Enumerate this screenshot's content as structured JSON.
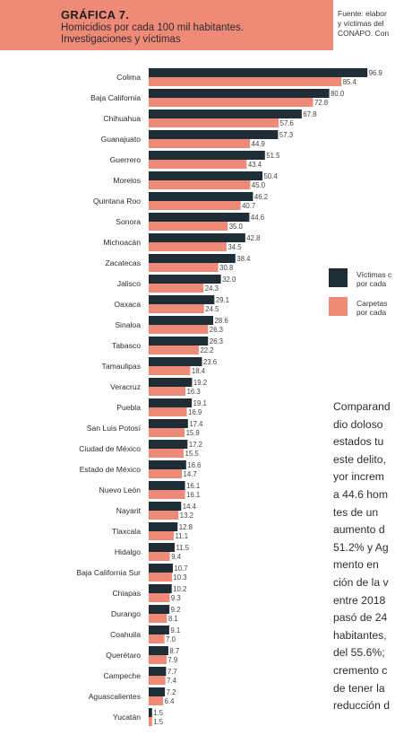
{
  "header": {
    "title": "GRÁFICA 7.",
    "subtitle_line1": "Homicidios por cada 100 mil habitantes.",
    "subtitle_line2": "Investigaciones y víctimas",
    "source_line1": "Fuente: elabor",
    "source_line2": "y víctimas del",
    "source_line3": "CONAPO. Con"
  },
  "legend": [
    {
      "line1": "Víctimas c",
      "line2": "por cada",
      "color": "#1f2d36"
    },
    {
      "line1": "Carpetas",
      "line2": "por cada",
      "color": "#f08a78"
    }
  ],
  "body_text": [
    "Comparand",
    "dio doloso",
    "estados tu",
    "este delito,",
    "yor increm",
    "a 44.6 hom",
    "tes de un",
    "aumento d",
    "51.2% y Ag",
    "mento en",
    "ción de la v",
    "entre 2018",
    "pasó de 24",
    "habitantes,",
    "del 55.6%;",
    "cremento c",
    "de tener la",
    "reducción d"
  ],
  "chart_data": {
    "type": "bar",
    "orientation": "horizontal",
    "categories": [
      "Colima",
      "Baja California",
      "Chihuahua",
      "Guanajuato",
      "Guerrero",
      "Morelos",
      "Quintana Roo",
      "Sonora",
      "Michoacán",
      "Zacatecas",
      "Jalisco",
      "Oaxaca",
      "Sinaloa",
      "Tabasco",
      "Tamaulipas",
      "Veracruz",
      "Puebla",
      "San Luis Potosí",
      "Ciudad de México",
      "Estado de México",
      "Nuevo León",
      "Nayarit",
      "Tlaxcala",
      "Hidalgo",
      "Baja California Sur",
      "Chiapas",
      "Durango",
      "Coahuila",
      "Querétaro",
      "Campeche",
      "Aguascalientes",
      "Yucatán"
    ],
    "series": [
      {
        "name": "Víctimas c por cada",
        "color": "#1f2d36",
        "values": [
          96.9,
          80.0,
          67.8,
          57.3,
          51.5,
          50.4,
          46.2,
          44.6,
          42.8,
          38.4,
          32.0,
          29.1,
          28.6,
          26.3,
          23.6,
          19.2,
          19.1,
          17.4,
          17.2,
          16.6,
          16.1,
          14.4,
          12.8,
          11.5,
          10.7,
          10.2,
          9.2,
          9.1,
          8.7,
          7.7,
          7.2,
          1.5
        ],
        "labels": [
          "96.9",
          "80.0",
          "67.8",
          "57.3",
          "51.5",
          "50.4",
          "46.2",
          "44.6",
          "42.8",
          "38.4",
          "32.0",
          "29.1",
          "28.6",
          "26.3",
          "23.6",
          "19.2",
          "19.1",
          "17.4",
          "17.2",
          "16.6",
          "16.1",
          "14.4",
          "12.8",
          "11.5",
          "10.7",
          "10.2",
          "9.2",
          "9.1",
          "8.7",
          "7.7",
          "7.2",
          "1.5"
        ]
      },
      {
        "name": "Carpetas por cada",
        "color": "#f08a78",
        "values": [
          85.4,
          72.8,
          57.6,
          44.9,
          43.4,
          45.0,
          40.7,
          35.0,
          34.5,
          30.8,
          24.3,
          24.5,
          26.3,
          22.2,
          18.4,
          16.3,
          16.9,
          15.9,
          15.5,
          14.7,
          16.1,
          13.2,
          11.1,
          9.4,
          10.3,
          9.3,
          8.1,
          7.0,
          7.9,
          7.4,
          6.4,
          1.5
        ],
        "labels": [
          "85.4",
          "72.8",
          "57.6",
          "44.9",
          "43.4",
          "45.0",
          "40.7",
          "35.0",
          "34.5",
          "30.8",
          "24.3",
          "24.5",
          "26.3",
          "22.2",
          "18.4",
          "16.3",
          "16.9",
          "15.9",
          "15.5",
          "14.7",
          "16.1",
          "13.2",
          "11.1",
          "9.4",
          "10.3",
          "9.3",
          "8.1",
          "7.0",
          "7.9",
          "7.4",
          "6.4",
          "1.5"
        ]
      }
    ],
    "xlim": [
      0,
      100
    ],
    "grid": false,
    "legend_position": "right"
  }
}
